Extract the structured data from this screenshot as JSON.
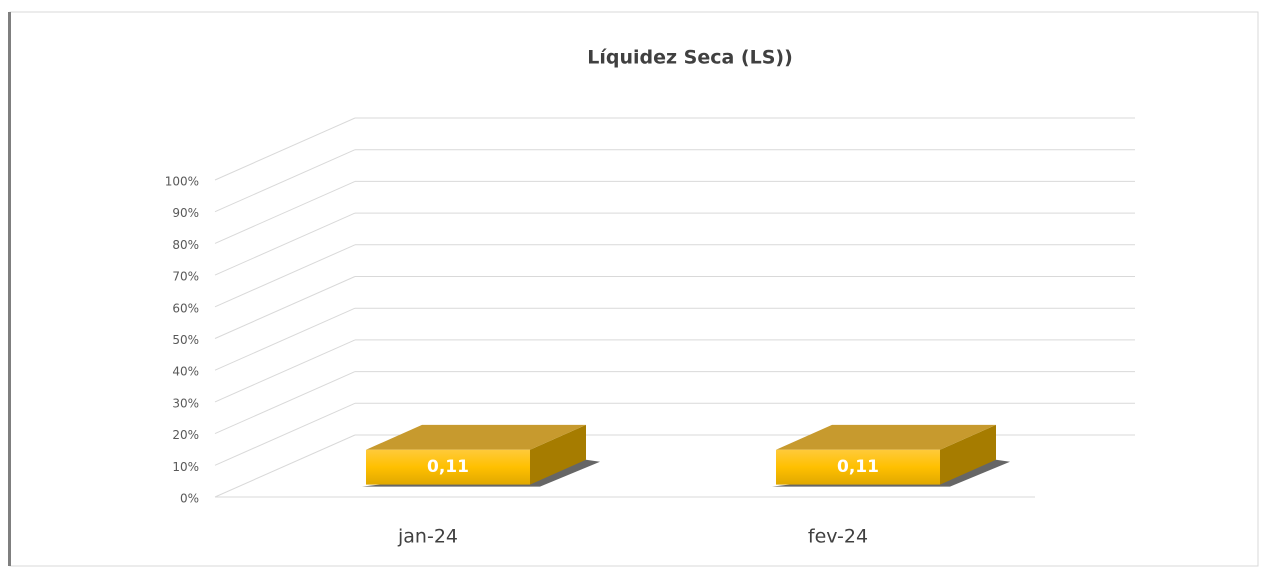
{
  "chart_data": {
    "type": "bar3d",
    "title": "Líquidez Seca (LS))",
    "categories": [
      "jan-24",
      "fev-24"
    ],
    "values": [
      11,
      11
    ],
    "value_labels": [
      "0,11",
      "0,11"
    ],
    "color": "#ffc000",
    "ylim": [
      0,
      100
    ],
    "yticks": [
      {
        "value": 0,
        "label": "0%"
      },
      {
        "value": 10,
        "label": "10%"
      },
      {
        "value": 20,
        "label": "20%"
      },
      {
        "value": 30,
        "label": "30%"
      },
      {
        "value": 40,
        "label": "40%"
      },
      {
        "value": 50,
        "label": "50%"
      },
      {
        "value": 60,
        "label": "60%"
      },
      {
        "value": 70,
        "label": "70%"
      },
      {
        "value": 80,
        "label": "80%"
      },
      {
        "value": 90,
        "label": "90%"
      },
      {
        "value": 100,
        "label": "100%"
      }
    ],
    "grid": true
  }
}
